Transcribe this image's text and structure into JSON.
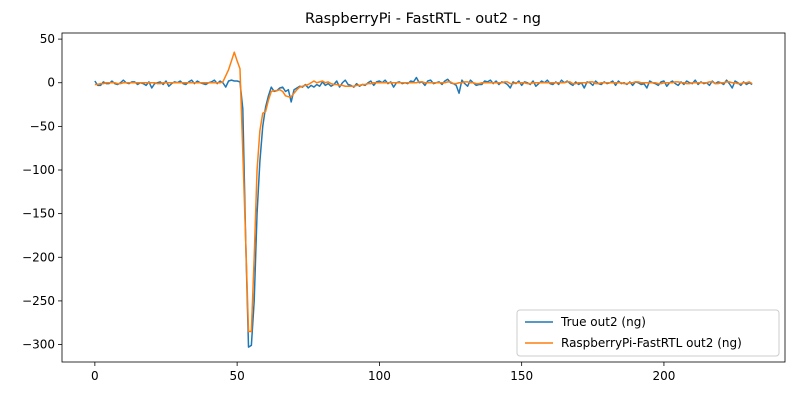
{
  "chart_data": {
    "type": "line",
    "title": "RaspberryPi - FastRTL - out2 - ng",
    "x": [
      0,
      1,
      2,
      3,
      4,
      5,
      6,
      7,
      8,
      9,
      10,
      11,
      12,
      13,
      14,
      15,
      16,
      17,
      18,
      19,
      20,
      21,
      22,
      23,
      24,
      25,
      26,
      27,
      28,
      29,
      30,
      31,
      32,
      33,
      34,
      35,
      36,
      37,
      38,
      39,
      40,
      41,
      42,
      43,
      44,
      45,
      46,
      47,
      48,
      49,
      50,
      51,
      52,
      53,
      54,
      55,
      56,
      57,
      58,
      59,
      60,
      61,
      62,
      63,
      64,
      65,
      66,
      67,
      68,
      69,
      70,
      71,
      72,
      73,
      74,
      75,
      76,
      77,
      78,
      79,
      80,
      81,
      82,
      83,
      84,
      85,
      86,
      87,
      88,
      89,
      90,
      91,
      92,
      93,
      94,
      95,
      96,
      97,
      98,
      99,
      100,
      101,
      102,
      103,
      104,
      105,
      106,
      107,
      108,
      109,
      110,
      111,
      112,
      113,
      114,
      115,
      116,
      117,
      118,
      119,
      120,
      121,
      122,
      123,
      124,
      125,
      126,
      127,
      128,
      129,
      130,
      131,
      132,
      133,
      134,
      135,
      136,
      137,
      138,
      139,
      140,
      141,
      142,
      143,
      144,
      145,
      146,
      147,
      148,
      149,
      150,
      151,
      152,
      153,
      154,
      155,
      156,
      157,
      158,
      159,
      160,
      161,
      162,
      163,
      164,
      165,
      166,
      167,
      168,
      169,
      170,
      171,
      172,
      173,
      174,
      175,
      176,
      177,
      178,
      179,
      180,
      181,
      182,
      183,
      184,
      185,
      186,
      187,
      188,
      189,
      190,
      191,
      192,
      193,
      194,
      195,
      196,
      197,
      198,
      199,
      200,
      201,
      202,
      203,
      204,
      205,
      206,
      207,
      208,
      209,
      210,
      211,
      212,
      213,
      214,
      215,
      216,
      217,
      218,
      219,
      220,
      221,
      222,
      223,
      224,
      225,
      226,
      227,
      228,
      229,
      230,
      231
    ],
    "series": [
      {
        "name": "True out2 (ng)",
        "color": "#1f77b4",
        "values": [
          2,
          -3,
          -3,
          1,
          -1,
          -1,
          2,
          -1,
          -2,
          0,
          3,
          0,
          -1,
          1,
          1,
          -2,
          0,
          -1,
          -3,
          1,
          -6,
          -1,
          0,
          1,
          -2,
          2,
          -4,
          -1,
          1,
          0,
          2,
          -1,
          -2,
          1,
          3,
          -1,
          2,
          0,
          -1,
          -2,
          0,
          1,
          3,
          -1,
          2,
          0,
          -5,
          2,
          3,
          2,
          2,
          1,
          -30,
          -180,
          -303,
          -301,
          -250,
          -150,
          -90,
          -50,
          -28,
          -15,
          -5,
          -10,
          -9,
          -6,
          -5,
          -10,
          -8,
          -22,
          -8,
          -6,
          -4,
          -5,
          -2,
          -6,
          -3,
          -5,
          -2,
          -4,
          1,
          -3,
          -1,
          -4,
          -2,
          2,
          -5,
          0,
          3,
          -2,
          -3,
          -5,
          -1,
          -4,
          -2,
          -3,
          0,
          2,
          -3,
          1,
          2,
          0,
          3,
          -1,
          1,
          -5,
          0,
          1,
          -1,
          0,
          -1,
          2,
          1,
          6,
          0,
          1,
          -3,
          2,
          3,
          -1,
          0,
          1,
          -2,
          2,
          4,
          0,
          -1,
          -3,
          -12,
          3,
          -1,
          -4,
          3,
          0,
          -3,
          -2,
          -2,
          2,
          1,
          3,
          -1,
          2,
          -2,
          1,
          0,
          -2,
          -6,
          1,
          -1,
          2,
          -3,
          1,
          0,
          -2,
          2,
          -4,
          -1,
          2,
          0,
          3,
          -1,
          -2,
          1,
          -2,
          3,
          0,
          2,
          -1,
          -3,
          1,
          -2,
          0,
          -6,
          1,
          0,
          -3,
          2,
          -1,
          -2,
          1,
          -1,
          0,
          2,
          -3,
          2,
          -1,
          0,
          -2,
          1,
          -3,
          1,
          0,
          -2,
          -1,
          -6,
          2,
          0,
          -1,
          -3,
          1,
          2,
          -4,
          0,
          2,
          -1,
          -3,
          1,
          -2,
          2,
          0,
          -1,
          3,
          -2,
          1,
          -1,
          0,
          -3,
          2,
          -1,
          1,
          0,
          -2,
          3,
          -1,
          -6,
          2,
          0,
          -3,
          1,
          -2,
          0,
          -2
        ]
      },
      {
        "name": "RaspberryPi-FastRTL out2 (ng)",
        "color": "#ff7f0e",
        "values": [
          -2,
          -2,
          -1,
          -1,
          0,
          0,
          0,
          0,
          -1,
          -1,
          0,
          0,
          0,
          0,
          0,
          0,
          0,
          0,
          0,
          0,
          0,
          0,
          -1,
          -1,
          0,
          0,
          0,
          0,
          0,
          0,
          0,
          0,
          0,
          0,
          0,
          0,
          0,
          0,
          0,
          0,
          0,
          0,
          0,
          0,
          0,
          1,
          8,
          15,
          25,
          35,
          25,
          16,
          -80,
          -180,
          -285,
          -285,
          -200,
          -100,
          -55,
          -35,
          -33,
          -20,
          -10,
          -9,
          -9,
          -8,
          -10,
          -15,
          -16,
          -16,
          -12,
          -8,
          -5,
          -4,
          -3,
          -2,
          0,
          2,
          0,
          1,
          2,
          0,
          1,
          -1,
          -2,
          -2,
          -3,
          -3,
          -4,
          -4,
          -4,
          -4,
          -3,
          -3,
          -2,
          -2,
          -1,
          -1,
          0,
          0,
          0,
          0,
          0,
          0,
          0,
          0,
          0,
          0,
          0,
          0,
          0,
          0,
          0,
          0,
          1,
          1,
          0,
          0,
          0,
          0,
          0,
          0,
          0,
          0,
          1,
          1,
          -1,
          -1,
          0,
          0,
          1,
          1,
          0,
          0,
          -1,
          -1,
          0,
          0,
          0,
          0,
          0,
          0,
          0,
          0,
          1,
          1,
          -1,
          -1,
          0,
          0,
          0,
          0,
          -1,
          -1,
          0,
          0,
          0,
          0,
          0,
          0,
          0,
          0,
          0,
          0,
          0,
          0,
          1,
          1,
          -1,
          -1,
          0,
          0,
          0,
          0,
          1,
          1,
          -1,
          -1,
          0,
          0,
          0,
          0,
          0,
          0,
          0,
          0,
          -1,
          -1,
          0,
          0,
          1,
          1,
          0,
          0,
          0,
          0,
          0,
          0,
          -1,
          -1,
          0,
          0,
          0,
          0,
          1,
          1,
          0,
          0,
          -1,
          -1,
          0,
          0,
          0,
          0,
          0,
          0,
          1,
          1,
          -1,
          -1,
          0,
          0,
          1,
          1,
          0,
          0,
          -1,
          -1,
          0,
          0,
          1,
          -1
        ]
      }
    ],
    "xlim": [
      -11.55,
      242.55
    ],
    "ylim": [
      -320,
      57
    ],
    "xticks": [
      0,
      50,
      100,
      150,
      200
    ],
    "yticks": [
      {
        "value": -300,
        "label": "−300"
      },
      {
        "value": -250,
        "label": "−250"
      },
      {
        "value": -200,
        "label": "−200"
      },
      {
        "value": -150,
        "label": "−150"
      },
      {
        "value": -100,
        "label": "−100"
      },
      {
        "value": -50,
        "label": "−50"
      },
      0,
      50
    ],
    "legend": "lower right"
  }
}
